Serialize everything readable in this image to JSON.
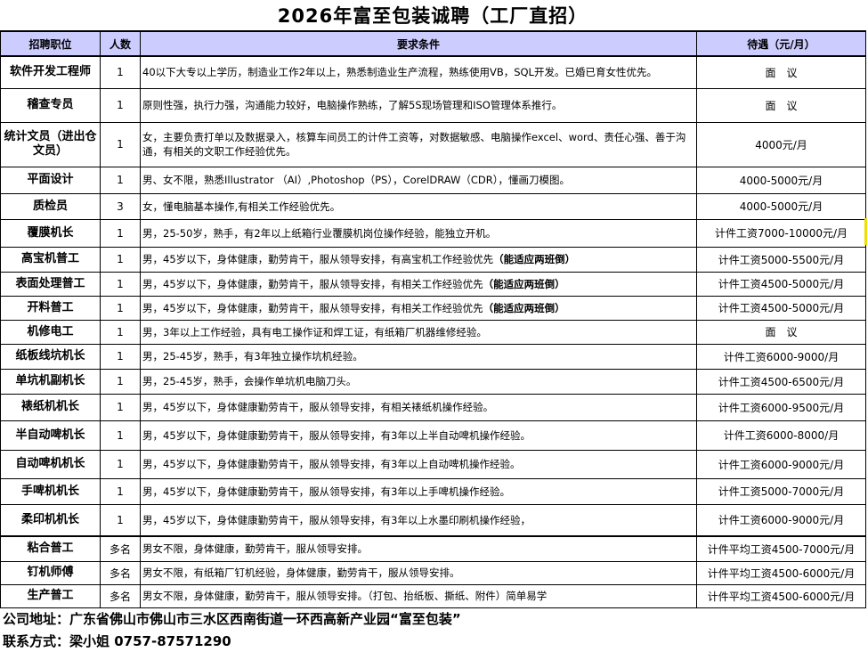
{
  "title": "2026年富至包装诚聘（工厂直招）",
  "headers": {
    "position": "招聘职位",
    "count": "人数",
    "requirements": "要求条件",
    "salary": "待遇（元/月）"
  },
  "rows": [
    {
      "position": "软件开发工程师",
      "count": "1",
      "req": "40以下大专以上学历，制造业工作2年以上，熟悉制造业生产流程，熟练使用VB，SQL开发。已婚已育女性优先。",
      "req_bold": "",
      "salary": "面　议"
    },
    {
      "position": "稽查专员",
      "count": "1",
      "req": "原则性强，执行力强，沟通能力较好，电脑操作熟练，了解5S现场管理和ISO管理体系推行。",
      "req_bold": "",
      "salary": "面　议"
    },
    {
      "position": "统计文员（进出仓文员）",
      "count": "1",
      "req": "女，主要负责打单以及数据录入，核算车间员工的计件工资等，对数据敏感、电脑操作excel、word、责任心强、善于沟通，有相关的文职工作经验优先。",
      "req_bold": "",
      "salary": "4000元/月"
    },
    {
      "position": "平面设计",
      "count": "1",
      "req": "男、女不限，熟悉Illustrator （AI）,Photoshop（PS），CorelDRAW（CDR），懂画刀模图。",
      "req_bold": "",
      "salary": "4000-5000元/月"
    },
    {
      "position": "质检员",
      "count": "3",
      "req": "女，懂电脑基本操作,有相关工作经验优先。",
      "req_bold": "",
      "salary": "4000-5000元/月"
    },
    {
      "position": "覆膜机长",
      "count": "1",
      "req": "男，25-50岁，熟手，有2年以上纸箱行业覆膜机岗位操作经验，能独立开机。",
      "req_bold": "",
      "salary": "计件工资7000-10000元/月"
    },
    {
      "position": "高宝机普工",
      "count": "1",
      "req": "男，45岁以下，身体健康，勤劳肯干，服从领导安排，有高宝机工作经验优先",
      "req_bold": "（能适应两班倒）",
      "salary": "计件工资5000-5500元/月"
    },
    {
      "position": "表面处理普工",
      "count": "1",
      "req": "男，45岁以下，身体健康，勤劳肯干，服从领导安排，有相关工作经验优先",
      "req_bold": "（能适应两班倒）",
      "salary": "计件工资4500-5000元/月"
    },
    {
      "position": "开料普工",
      "count": "1",
      "req": "男，45岁以下，身体健康，勤劳肯干，服从领导安排，有相关工作经验优先",
      "req_bold": "（能适应两班倒）",
      "salary": "计件工资4500-5000元/月"
    },
    {
      "position": "机修电工",
      "count": "1",
      "req": "男，3年以上工作经验，具有电工操作证和焊工证，有纸箱厂机器维修经验。",
      "req_bold": "",
      "salary": "面　议"
    },
    {
      "position": "纸板线坑机长",
      "count": "1",
      "req": "男，25-45岁，熟手，有3年独立操作坑机经验。",
      "req_bold": "",
      "salary": "计件工资6000-9000/月"
    },
    {
      "position": "单坑机副机长",
      "count": "1",
      "req": "男，25-45岁，熟手，会操作单坑机电脑刀头。",
      "req_bold": "",
      "salary": "计件工资4500-6500元/月"
    },
    {
      "position": "裱纸机机长",
      "count": "1",
      "req": "男，45岁以下，身体健康勤劳肯干，服从领导安排，有相关裱纸机操作经验。",
      "req_bold": "",
      "salary": "计件工资6000-9500元/月"
    },
    {
      "position": "半自动啤机长",
      "count": "1",
      "req": "男，45岁以下，身体健康勤劳肯干，服从领导安排，有3年以上半自动啤机操作经验。",
      "req_bold": "",
      "salary": "计件工资6000-8000/月"
    },
    {
      "position": "自动啤机机长",
      "count": "1",
      "req": "男，45岁以下，身体健康勤劳肯干，服从领导安排，有3年以上自动啤机操作经验。",
      "req_bold": "",
      "salary": "计件工资6000-9000元/月"
    },
    {
      "position": "手啤机机长",
      "count": "1",
      "req": "男，45岁以下，身体健康勤劳肯干，服从领导安排，有3年以上手啤机操作经验。",
      "req_bold": "",
      "salary": "计件工资5000-7000元/月"
    },
    {
      "position": "柔印机机长",
      "count": "1",
      "req": "男，45岁以下，身体健康勤劳肯干，服从领导安排，有3年以上水墨印刷机操作经验，",
      "req_bold": "",
      "salary": "计件工资6000-9000元/月"
    },
    {
      "position": "粘合普工",
      "count": "多名",
      "req": "男女不限，身体健康，勤劳肯干，服从领导安排。",
      "req_bold": "",
      "salary": "计件平均工资4500-7000元/月"
    },
    {
      "position": "钉机师傅",
      "count": "多名",
      "req": "男女不限，有纸箱厂钉机经验，身体健康，勤劳肯干，服从领导安排。",
      "req_bold": "",
      "salary": "计件平均工资4500-6000元/月"
    },
    {
      "position": "生产普工",
      "count": "多名",
      "req": "男女不限，身体健康，勤劳肯干，服从领导安排。（打包、抬纸板、撕纸、附件）简单易学",
      "req_bold": "",
      "salary": "计件平均工资4500-6000元/月"
    }
  ],
  "footer": {
    "address": "公司地址：广东省佛山市佛山市三水区西南街道一环西高新产业园“富至包装”",
    "contact": "联系方式：梁小姐 0757-87571290"
  },
  "colors": {
    "header_bg": "#ccccff"
  }
}
